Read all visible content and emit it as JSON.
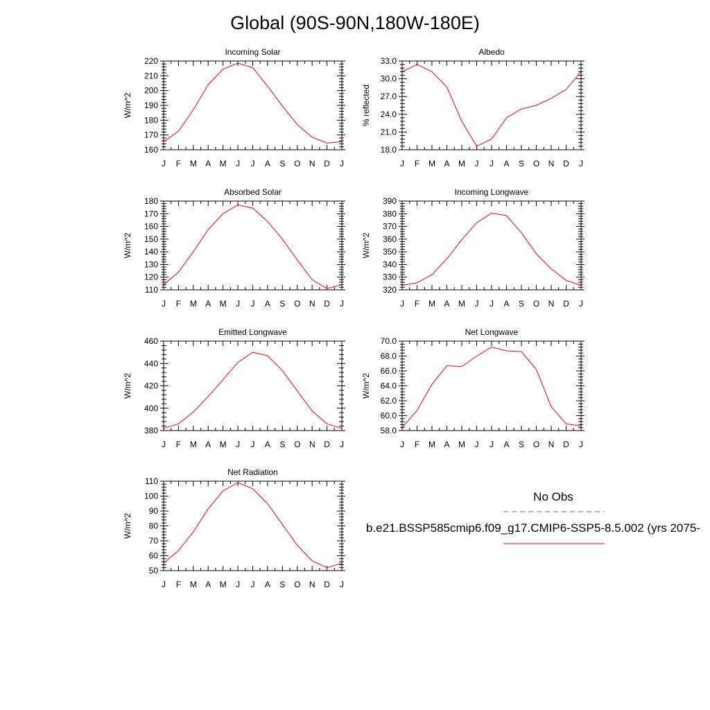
{
  "title": "Global (90S-90N,180W-180E)",
  "colors": {
    "model_line": "#ff0000",
    "obs_line": "#6060ff",
    "axis": "#000000"
  },
  "legend": {
    "obs_label": "No Obs",
    "case_label": "b.e21.BSSP585cmip6.f09_g17.CMIP6-SSP5-8.5.002 (yrs 2075-"
  },
  "chart_data": [
    {
      "type": "line",
      "title": "Incoming Solar",
      "ylabel": "W/m^2",
      "x": [
        "J",
        "F",
        "M",
        "A",
        "M",
        "J",
        "J",
        "A",
        "S",
        "O",
        "N",
        "D",
        "J"
      ],
      "ylim": [
        160,
        220
      ],
      "yticks": [
        "160",
        "170",
        "180",
        "190",
        "200",
        "210",
        "220"
      ],
      "series": [
        {
          "values": [
            165.5,
            172.5,
            187,
            204,
            214.5,
            218.5,
            215.5,
            203,
            189.5,
            177,
            168.5,
            164.5,
            165.5
          ]
        }
      ]
    },
    {
      "type": "line",
      "title": "Albedo",
      "ylabel": "% reflected",
      "x": [
        "J",
        "F",
        "M",
        "A",
        "M",
        "J",
        "J",
        "A",
        "S",
        "O",
        "N",
        "D",
        "J"
      ],
      "ylim": [
        18,
        33
      ],
      "yticks": [
        "18.0",
        "21.0",
        "24.0",
        "27.0",
        "30.0",
        "33.0"
      ],
      "series": [
        {
          "values": [
            31.2,
            32.4,
            31.2,
            28.6,
            22.8,
            18.6,
            19.8,
            23.4,
            24.9,
            25.5,
            26.7,
            28.2,
            31.2
          ]
        }
      ]
    },
    {
      "type": "line",
      "title": "Absorbed Solar",
      "ylabel": "W/m^2",
      "x": [
        "J",
        "F",
        "M",
        "A",
        "M",
        "J",
        "J",
        "A",
        "S",
        "O",
        "N",
        "D",
        "J"
      ],
      "ylim": [
        110,
        180
      ],
      "yticks": [
        "110",
        "120",
        "130",
        "140",
        "150",
        "160",
        "170",
        "180"
      ],
      "series": [
        {
          "values": [
            114,
            124,
            140,
            157.5,
            170,
            177,
            174.5,
            164,
            150,
            133.5,
            118,
            111,
            114
          ]
        }
      ]
    },
    {
      "type": "line",
      "title": "Incoming Longwave",
      "ylabel": "W/m^2",
      "x": [
        "J",
        "F",
        "M",
        "A",
        "M",
        "J",
        "J",
        "A",
        "S",
        "O",
        "N",
        "D",
        "J"
      ],
      "ylim": [
        320,
        390
      ],
      "yticks": [
        "320",
        "330",
        "340",
        "350",
        "360",
        "370",
        "380",
        "390"
      ],
      "series": [
        {
          "values": [
            323.5,
            325.5,
            332,
            344.5,
            359.5,
            373,
            380.5,
            378.5,
            365,
            348.5,
            336.5,
            327.5,
            323.5
          ]
        }
      ]
    },
    {
      "type": "line",
      "title": "Emitted Longwave",
      "ylabel": "W/m^2",
      "x": [
        "J",
        "F",
        "M",
        "A",
        "M",
        "J",
        "J",
        "A",
        "S",
        "O",
        "N",
        "D",
        "J"
      ],
      "ylim": [
        380,
        460
      ],
      "yticks": [
        "380",
        "400",
        "420",
        "440",
        "460"
      ],
      "series": [
        {
          "values": [
            382,
            386,
            396.5,
            410.5,
            425.5,
            441,
            450,
            447,
            433.5,
            415.5,
            397.5,
            386,
            382
          ]
        }
      ]
    },
    {
      "type": "line",
      "title": "Net Longwave",
      "ylabel": "W/m^2",
      "x": [
        "J",
        "F",
        "M",
        "A",
        "M",
        "J",
        "J",
        "A",
        "S",
        "O",
        "N",
        "D",
        "J"
      ],
      "ylim": [
        58,
        70
      ],
      "yticks": [
        "58.0",
        "60.0",
        "62.0",
        "64.0",
        "66.0",
        "68.0",
        "70.0"
      ],
      "series": [
        {
          "values": [
            58.4,
            60.7,
            64.2,
            66.7,
            66.6,
            68,
            69.2,
            68.7,
            68.6,
            66.2,
            61.2,
            58.9,
            58.6
          ]
        }
      ]
    },
    {
      "type": "line",
      "title": "Net Radiation",
      "ylabel": "W/m^2",
      "x": [
        "J",
        "F",
        "M",
        "A",
        "M",
        "J",
        "J",
        "A",
        "S",
        "O",
        "N",
        "D",
        "J"
      ],
      "ylim": [
        50,
        110
      ],
      "yticks": [
        "50",
        "60",
        "70",
        "80",
        "90",
        "100",
        "110"
      ],
      "series": [
        {
          "values": [
            55,
            63.5,
            76,
            91.5,
            103.5,
            109,
            105,
            95,
            81,
            67,
            56.5,
            52,
            55
          ]
        }
      ]
    }
  ]
}
